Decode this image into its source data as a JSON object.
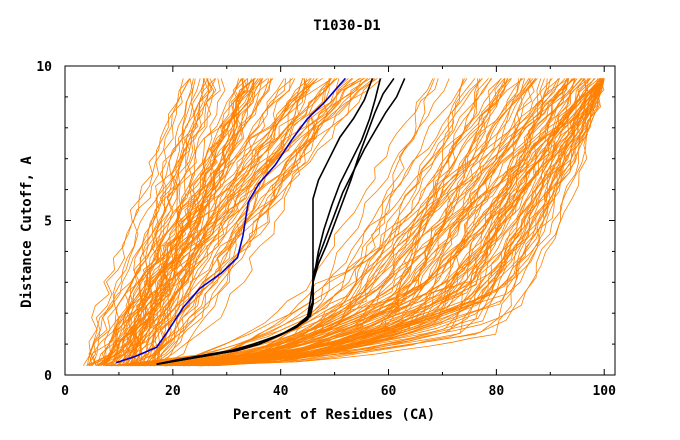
{
  "chart_data": {
    "type": "line",
    "title": "T1030-D1",
    "xlabel": "Percent of Residues (CA)",
    "ylabel": "Distance Cutoff, A",
    "xlim": [
      0,
      102
    ],
    "ylim": [
      0,
      10
    ],
    "x_ticks": [
      0,
      20,
      40,
      60,
      80,
      100
    ],
    "y_ticks": [
      0,
      5,
      10
    ],
    "grid": false,
    "legend": "none",
    "colors": {
      "background_models": "#ff8000",
      "highlight_blue": "#0000cc",
      "highlight_black": "#000000",
      "axes": "#000000"
    },
    "series": [
      {
        "color": "#0000cc",
        "points": [
          [
            9.5,
            0.4
          ],
          [
            13,
            0.6
          ],
          [
            17,
            0.9
          ],
          [
            19,
            1.4
          ],
          [
            22,
            2.2
          ],
          [
            25,
            2.8
          ],
          [
            29,
            3.3
          ],
          [
            32,
            3.8
          ],
          [
            33,
            4.5
          ],
          [
            34,
            5.6
          ],
          [
            36,
            6.2
          ],
          [
            39,
            6.8
          ],
          [
            42,
            7.6
          ],
          [
            45,
            8.3
          ],
          [
            48,
            8.8
          ],
          [
            50,
            9.2
          ],
          [
            52,
            9.6
          ]
        ]
      },
      {
        "color": "#000000",
        "points": [
          [
            17,
            0.35
          ],
          [
            22,
            0.5
          ],
          [
            27,
            0.65
          ],
          [
            32,
            0.8
          ],
          [
            36,
            1.0
          ],
          [
            40,
            1.3
          ],
          [
            43,
            1.6
          ],
          [
            45.5,
            1.9
          ],
          [
            46,
            2.3
          ],
          [
            46,
            3.2
          ],
          [
            46.5,
            3.5
          ],
          [
            47,
            4.0
          ],
          [
            48,
            4.7
          ],
          [
            49.5,
            5.5
          ],
          [
            51,
            6.2
          ],
          [
            53,
            6.9
          ],
          [
            55,
            7.6
          ],
          [
            56.5,
            8.3
          ],
          [
            57.5,
            8.9
          ],
          [
            58.5,
            9.6
          ]
        ]
      },
      {
        "color": "#000000",
        "points": [
          [
            17,
            0.35
          ],
          [
            22,
            0.5
          ],
          [
            27,
            0.65
          ],
          [
            32,
            0.8
          ],
          [
            36,
            1.0
          ],
          [
            40,
            1.3
          ],
          [
            43,
            1.55
          ],
          [
            45,
            1.9
          ],
          [
            46,
            2.4
          ],
          [
            46,
            3.0
          ],
          [
            47,
            3.6
          ],
          [
            48.5,
            4.2
          ],
          [
            50,
            4.9
          ],
          [
            51.5,
            5.6
          ],
          [
            53,
            6.3
          ],
          [
            54.5,
            7.1
          ],
          [
            56,
            7.8
          ],
          [
            57.5,
            8.5
          ],
          [
            59,
            9.1
          ],
          [
            61,
            9.6
          ]
        ]
      },
      {
        "color": "#000000",
        "points": [
          [
            17,
            0.35
          ],
          [
            22,
            0.5
          ],
          [
            27,
            0.65
          ],
          [
            32,
            0.8
          ],
          [
            36,
            1.0
          ],
          [
            40,
            1.3
          ],
          [
            43,
            1.6
          ],
          [
            45,
            1.9
          ],
          [
            45.5,
            2.4
          ],
          [
            46,
            3.0
          ],
          [
            47,
            3.8
          ],
          [
            48.5,
            4.5
          ],
          [
            50,
            5.2
          ],
          [
            51.5,
            5.9
          ],
          [
            53.5,
            6.6
          ],
          [
            55.5,
            7.3
          ],
          [
            57.5,
            7.9
          ],
          [
            59.5,
            8.5
          ],
          [
            61.5,
            9.0
          ],
          [
            63,
            9.6
          ]
        ]
      },
      {
        "color": "#000000",
        "points": [
          [
            17,
            0.35
          ],
          [
            21,
            0.5
          ],
          [
            26,
            0.65
          ],
          [
            31,
            0.8
          ],
          [
            35,
            1.0
          ],
          [
            39,
            1.25
          ],
          [
            42.5,
            1.5
          ],
          [
            45,
            1.8
          ],
          [
            46,
            2.3
          ],
          [
            46,
            2.9
          ],
          [
            46,
            3.5
          ],
          [
            46,
            4.2
          ],
          [
            46,
            5.0
          ],
          [
            46,
            5.7
          ],
          [
            47,
            6.3
          ],
          [
            49,
            7.0
          ],
          [
            51,
            7.7
          ],
          [
            53.5,
            8.3
          ],
          [
            55.5,
            8.9
          ],
          [
            57,
            9.6
          ]
        ]
      }
    ]
  }
}
